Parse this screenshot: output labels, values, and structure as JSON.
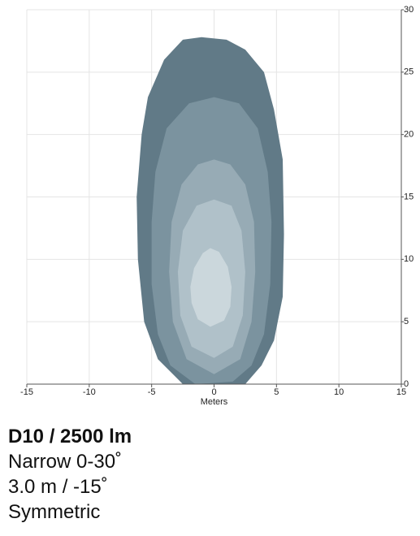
{
  "chart_data": {
    "type": "contour",
    "xlabel": "Meters",
    "xlim": [
      -15,
      15
    ],
    "xticks": [
      -15,
      -10,
      -5,
      0,
      5,
      10,
      15
    ],
    "ylim": [
      0,
      30
    ],
    "yticks": [
      0,
      5,
      10,
      15,
      20,
      25,
      30
    ],
    "grid": true,
    "series": [
      {
        "color": "#617a87",
        "x": [
          -2.5,
          -4.5,
          -5.6,
          -6.1,
          -6.2,
          -5.8,
          -5.3,
          -4,
          -2.5,
          -1,
          1,
          2.5,
          4,
          4.8,
          5.5,
          5.6,
          5.5,
          4.8,
          3.8,
          2.5
        ],
        "y": [
          0,
          2,
          5,
          10,
          15,
          20,
          23,
          26,
          27.6,
          27.8,
          27.6,
          26.8,
          25,
          22,
          18,
          12,
          7,
          3.5,
          1.5,
          0
        ]
      },
      {
        "color": "#7b939f",
        "x": [
          -1.5,
          -3.5,
          -4.5,
          -5,
          -5,
          -4.7,
          -3.8,
          -2,
          0,
          2,
          3.5,
          4.3,
          4.6,
          4.5,
          4,
          3,
          1.5
        ],
        "y": [
          0,
          1.5,
          4,
          8,
          13,
          17,
          20.5,
          22.5,
          23,
          22.5,
          20.5,
          17,
          13,
          8,
          4,
          1.5,
          0.2
        ]
      },
      {
        "color": "#97abb5",
        "x": [
          0,
          -2.2,
          -3.3,
          -3.6,
          -3.4,
          -2.6,
          -1.3,
          0,
          1.3,
          2.5,
          3.2,
          3.3,
          3,
          2.1
        ],
        "y": [
          0.8,
          2,
          5,
          9,
          13,
          16,
          17.6,
          18,
          17.6,
          16,
          13,
          9,
          5,
          2
        ]
      },
      {
        "color": "#b0c1c9",
        "x": [
          0,
          -1.8,
          -2.7,
          -2.9,
          -2.5,
          -1.4,
          0,
          1.4,
          2.2,
          2.5,
          2.3,
          1.5
        ],
        "y": [
          2.1,
          3,
          5.5,
          9,
          12.3,
          14.3,
          14.8,
          14.3,
          12.3,
          9,
          5.5,
          3
        ]
      },
      {
        "color": "#cbd7dc",
        "x": [
          -0.3,
          -1.3,
          -1.8,
          -1.9,
          -1.6,
          -0.9,
          -0.3,
          0.4,
          1.1,
          1.4,
          1.3,
          0.8
        ],
        "y": [
          4.6,
          5.2,
          6.5,
          7.8,
          9.3,
          10.5,
          10.9,
          10.6,
          9.4,
          7.8,
          6.2,
          5.1
        ]
      }
    ]
  },
  "caption": {
    "title": "D10 / 2500 lm",
    "lines": [
      "Narrow 0-30˚",
      "3.0 m / -15˚",
      "Symmetric"
    ]
  }
}
